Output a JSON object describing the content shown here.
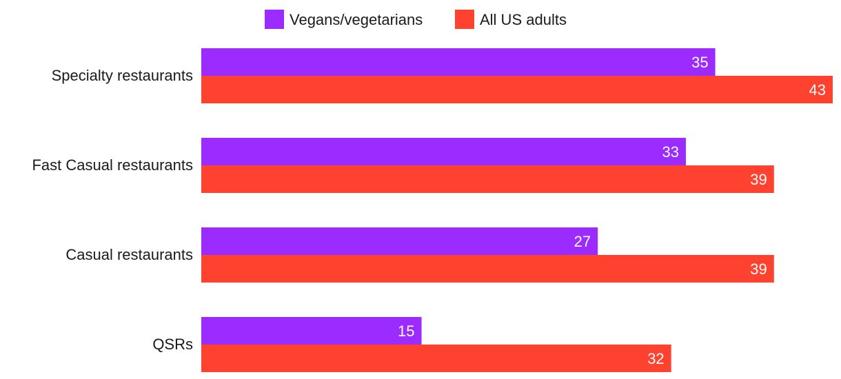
{
  "chart_data": {
    "type": "bar",
    "orientation": "horizontal",
    "categories": [
      "Specialty restaurants",
      "Fast Casual restaurants",
      "Casual restaurants",
      "QSRs"
    ],
    "series": [
      {
        "name": "Vegans/vegetarians",
        "color": "#9b2bff",
        "values": [
          35,
          33,
          27,
          15
        ]
      },
      {
        "name": "All US adults",
        "color": "#ff412f",
        "values": [
          43,
          39,
          39,
          32
        ]
      }
    ],
    "xlim": [
      0,
      43
    ],
    "grid": false,
    "legend_position": "top-center",
    "data_labels": true
  }
}
